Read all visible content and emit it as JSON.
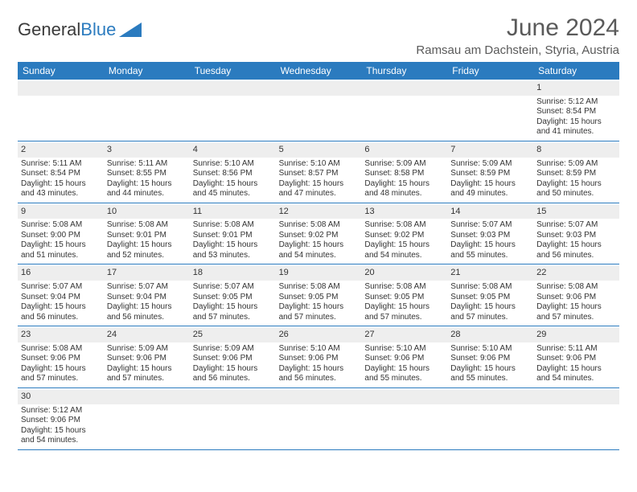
{
  "logo": {
    "textA": "General",
    "textB": "Blue",
    "triangle_color": "#2b7bbf"
  },
  "title": "June 2024",
  "location": "Ramsau am Dachstein, Styria, Austria",
  "header_bg": "#2b7bbf",
  "header_fg": "#ffffff",
  "num_bg": "#eeeeee",
  "border_color": "#2b7bbf",
  "text_color": "#333333",
  "dow": [
    "Sunday",
    "Monday",
    "Tuesday",
    "Wednesday",
    "Thursday",
    "Friday",
    "Saturday"
  ],
  "weeks": [
    [
      {
        "n": "",
        "sr": "",
        "ss": "",
        "dl": ""
      },
      {
        "n": "",
        "sr": "",
        "ss": "",
        "dl": ""
      },
      {
        "n": "",
        "sr": "",
        "ss": "",
        "dl": ""
      },
      {
        "n": "",
        "sr": "",
        "ss": "",
        "dl": ""
      },
      {
        "n": "",
        "sr": "",
        "ss": "",
        "dl": ""
      },
      {
        "n": "",
        "sr": "",
        "ss": "",
        "dl": ""
      },
      {
        "n": "1",
        "sr": "Sunrise: 5:12 AM",
        "ss": "Sunset: 8:54 PM",
        "dl": "Daylight: 15 hours and 41 minutes."
      }
    ],
    [
      {
        "n": "2",
        "sr": "Sunrise: 5:11 AM",
        "ss": "Sunset: 8:54 PM",
        "dl": "Daylight: 15 hours and 43 minutes."
      },
      {
        "n": "3",
        "sr": "Sunrise: 5:11 AM",
        "ss": "Sunset: 8:55 PM",
        "dl": "Daylight: 15 hours and 44 minutes."
      },
      {
        "n": "4",
        "sr": "Sunrise: 5:10 AM",
        "ss": "Sunset: 8:56 PM",
        "dl": "Daylight: 15 hours and 45 minutes."
      },
      {
        "n": "5",
        "sr": "Sunrise: 5:10 AM",
        "ss": "Sunset: 8:57 PM",
        "dl": "Daylight: 15 hours and 47 minutes."
      },
      {
        "n": "6",
        "sr": "Sunrise: 5:09 AM",
        "ss": "Sunset: 8:58 PM",
        "dl": "Daylight: 15 hours and 48 minutes."
      },
      {
        "n": "7",
        "sr": "Sunrise: 5:09 AM",
        "ss": "Sunset: 8:59 PM",
        "dl": "Daylight: 15 hours and 49 minutes."
      },
      {
        "n": "8",
        "sr": "Sunrise: 5:09 AM",
        "ss": "Sunset: 8:59 PM",
        "dl": "Daylight: 15 hours and 50 minutes."
      }
    ],
    [
      {
        "n": "9",
        "sr": "Sunrise: 5:08 AM",
        "ss": "Sunset: 9:00 PM",
        "dl": "Daylight: 15 hours and 51 minutes."
      },
      {
        "n": "10",
        "sr": "Sunrise: 5:08 AM",
        "ss": "Sunset: 9:01 PM",
        "dl": "Daylight: 15 hours and 52 minutes."
      },
      {
        "n": "11",
        "sr": "Sunrise: 5:08 AM",
        "ss": "Sunset: 9:01 PM",
        "dl": "Daylight: 15 hours and 53 minutes."
      },
      {
        "n": "12",
        "sr": "Sunrise: 5:08 AM",
        "ss": "Sunset: 9:02 PM",
        "dl": "Daylight: 15 hours and 54 minutes."
      },
      {
        "n": "13",
        "sr": "Sunrise: 5:08 AM",
        "ss": "Sunset: 9:02 PM",
        "dl": "Daylight: 15 hours and 54 minutes."
      },
      {
        "n": "14",
        "sr": "Sunrise: 5:07 AM",
        "ss": "Sunset: 9:03 PM",
        "dl": "Daylight: 15 hours and 55 minutes."
      },
      {
        "n": "15",
        "sr": "Sunrise: 5:07 AM",
        "ss": "Sunset: 9:03 PM",
        "dl": "Daylight: 15 hours and 56 minutes."
      }
    ],
    [
      {
        "n": "16",
        "sr": "Sunrise: 5:07 AM",
        "ss": "Sunset: 9:04 PM",
        "dl": "Daylight: 15 hours and 56 minutes."
      },
      {
        "n": "17",
        "sr": "Sunrise: 5:07 AM",
        "ss": "Sunset: 9:04 PM",
        "dl": "Daylight: 15 hours and 56 minutes."
      },
      {
        "n": "18",
        "sr": "Sunrise: 5:07 AM",
        "ss": "Sunset: 9:05 PM",
        "dl": "Daylight: 15 hours and 57 minutes."
      },
      {
        "n": "19",
        "sr": "Sunrise: 5:08 AM",
        "ss": "Sunset: 9:05 PM",
        "dl": "Daylight: 15 hours and 57 minutes."
      },
      {
        "n": "20",
        "sr": "Sunrise: 5:08 AM",
        "ss": "Sunset: 9:05 PM",
        "dl": "Daylight: 15 hours and 57 minutes."
      },
      {
        "n": "21",
        "sr": "Sunrise: 5:08 AM",
        "ss": "Sunset: 9:05 PM",
        "dl": "Daylight: 15 hours and 57 minutes."
      },
      {
        "n": "22",
        "sr": "Sunrise: 5:08 AM",
        "ss": "Sunset: 9:06 PM",
        "dl": "Daylight: 15 hours and 57 minutes."
      }
    ],
    [
      {
        "n": "23",
        "sr": "Sunrise: 5:08 AM",
        "ss": "Sunset: 9:06 PM",
        "dl": "Daylight: 15 hours and 57 minutes."
      },
      {
        "n": "24",
        "sr": "Sunrise: 5:09 AM",
        "ss": "Sunset: 9:06 PM",
        "dl": "Daylight: 15 hours and 57 minutes."
      },
      {
        "n": "25",
        "sr": "Sunrise: 5:09 AM",
        "ss": "Sunset: 9:06 PM",
        "dl": "Daylight: 15 hours and 56 minutes."
      },
      {
        "n": "26",
        "sr": "Sunrise: 5:10 AM",
        "ss": "Sunset: 9:06 PM",
        "dl": "Daylight: 15 hours and 56 minutes."
      },
      {
        "n": "27",
        "sr": "Sunrise: 5:10 AM",
        "ss": "Sunset: 9:06 PM",
        "dl": "Daylight: 15 hours and 55 minutes."
      },
      {
        "n": "28",
        "sr": "Sunrise: 5:10 AM",
        "ss": "Sunset: 9:06 PM",
        "dl": "Daylight: 15 hours and 55 minutes."
      },
      {
        "n": "29",
        "sr": "Sunrise: 5:11 AM",
        "ss": "Sunset: 9:06 PM",
        "dl": "Daylight: 15 hours and 54 minutes."
      }
    ],
    [
      {
        "n": "30",
        "sr": "Sunrise: 5:12 AM",
        "ss": "Sunset: 9:06 PM",
        "dl": "Daylight: 15 hours and 54 minutes."
      },
      {
        "n": "",
        "sr": "",
        "ss": "",
        "dl": ""
      },
      {
        "n": "",
        "sr": "",
        "ss": "",
        "dl": ""
      },
      {
        "n": "",
        "sr": "",
        "ss": "",
        "dl": ""
      },
      {
        "n": "",
        "sr": "",
        "ss": "",
        "dl": ""
      },
      {
        "n": "",
        "sr": "",
        "ss": "",
        "dl": ""
      },
      {
        "n": "",
        "sr": "",
        "ss": "",
        "dl": ""
      }
    ]
  ]
}
